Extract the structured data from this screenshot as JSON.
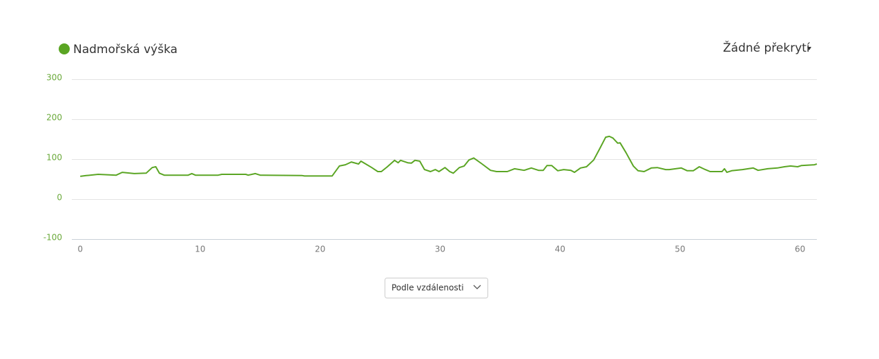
{
  "chart_data": {
    "type": "line",
    "x": [
      0,
      0.5,
      1.5,
      3,
      3.5,
      4.5,
      5.5,
      6,
      6.3,
      6.6,
      7,
      9,
      9.3,
      9.6,
      11.5,
      11.8,
      13.8,
      14,
      14.6,
      15,
      18.5,
      18.7,
      21,
      21.6,
      22.1,
      22.6,
      23.2,
      23.4,
      23.8,
      24.3,
      24.8,
      25.1,
      25.6,
      26.2,
      26.5,
      26.7,
      27.3,
      27.6,
      27.9,
      28.3,
      28.7,
      29.2,
      29.6,
      29.9,
      30.4,
      30.8,
      31.1,
      31.6,
      32.0,
      32.4,
      32.8,
      33.5,
      34.2,
      34.7,
      35.6,
      36.2,
      37,
      37.6,
      38.2,
      38.6,
      38.9,
      39.3,
      39.8,
      40.3,
      40.9,
      41.2,
      41.7,
      42.2,
      42.8,
      43.3,
      43.8,
      44.1,
      44.4,
      44.8,
      45,
      45.5,
      46.1,
      46.5,
      47,
      47.6,
      48.1,
      48.8,
      49.1,
      50.1,
      50.6,
      51.1,
      51.6,
      52.1,
      52.5,
      53.5,
      53.7,
      53.9,
      54.3,
      55.2,
      56.1,
      56.5,
      57.3,
      58.1,
      58.7,
      59.2,
      59.8,
      60.1,
      61.2,
      61.4
    ],
    "series": [
      {
        "name": "Nadmořská výška",
        "color": "#5aa523",
        "values": [
          57,
          59,
          62,
          60,
          67,
          64,
          65,
          79,
          81,
          65,
          60,
          60,
          64,
          60,
          60,
          62,
          62,
          60,
          64,
          60,
          59,
          58,
          58,
          83,
          86,
          93,
          88,
          95,
          88,
          79,
          69,
          69,
          81,
          97,
          91,
          97,
          91,
          90,
          97,
          95,
          74,
          69,
          74,
          69,
          79,
          69,
          65,
          79,
          83,
          98,
          103,
          88,
          72,
          69,
          69,
          76,
          72,
          78,
          72,
          72,
          84,
          84,
          71,
          74,
          72,
          67,
          78,
          81,
          98,
          126,
          155,
          157,
          153,
          140,
          141,
          116,
          83,
          71,
          69,
          78,
          79,
          74,
          74,
          78,
          71,
          71,
          81,
          74,
          69,
          69,
          76,
          67,
          71,
          74,
          78,
          72,
          76,
          78,
          81,
          83,
          81,
          84,
          86,
          88
        ]
      }
    ],
    "xlim": [
      -0.7,
      61.4
    ],
    "ylim": [
      -100,
      300
    ],
    "xticks": [
      0,
      10,
      20,
      30,
      40,
      50,
      60
    ],
    "yticks": [
      -100,
      0,
      100,
      200,
      300
    ],
    "grid": true
  },
  "overlay_menu": "Žádné překrytí",
  "sort_select": "Podle vzdálenosti"
}
